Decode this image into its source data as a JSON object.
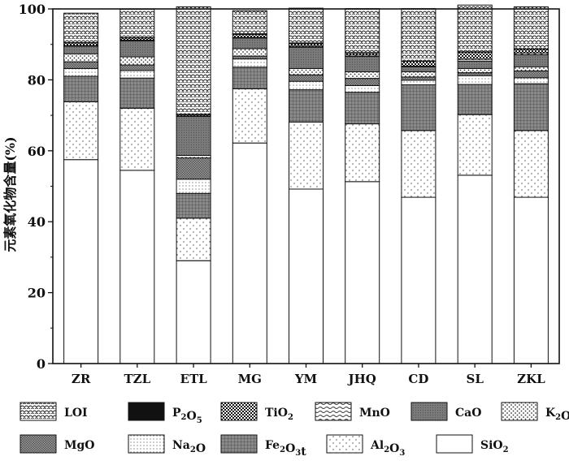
{
  "chart_data": {
    "type": "bar",
    "stacked": true,
    "title": "",
    "xlabel": "",
    "ylabel": "元素氧化物含量(%)",
    "ylim": [
      0,
      100
    ],
    "yticks": [
      0,
      20,
      40,
      60,
      80,
      100
    ],
    "categories": [
      "ZR",
      "TZL",
      "ETL",
      "MG",
      "YM",
      "JHQ",
      "CD",
      "SL",
      "ZKL"
    ],
    "series": [
      {
        "name": "SiO2",
        "pattern": "blank",
        "values": [
          57.5,
          54.5,
          29,
          62.2,
          49.2,
          51.3,
          46.9,
          53.1,
          46.9
        ]
      },
      {
        "name": "Al2O3",
        "pattern": "sparse-dots",
        "values": [
          16.3,
          17.5,
          12,
          15.3,
          18.9,
          16.3,
          18.8,
          17.1,
          18.8
        ]
      },
      {
        "name": "Fe2O3t",
        "pattern": "grid",
        "values": [
          7.2,
          8.5,
          7,
          6.1,
          9.1,
          8.9,
          12.9,
          8.5,
          13.2
        ]
      },
      {
        "name": "Na2O",
        "pattern": "fine-dots",
        "values": [
          2.2,
          2.1,
          4,
          2.3,
          2.4,
          1.9,
          1.3,
          2.5,
          1.7
        ]
      },
      {
        "name": "MgO",
        "pattern": "dense-grid",
        "values": [
          1.9,
          1.6,
          6,
          0.8,
          1.8,
          2.0,
          0.9,
          0.8,
          1.9
        ]
      },
      {
        "name": "K2O",
        "pattern": "dots",
        "values": [
          2.2,
          2.3,
          0.7,
          2.1,
          1.8,
          1.9,
          1.5,
          1.2,
          1.2
        ]
      },
      {
        "name": "CaO",
        "pattern": "gray",
        "values": [
          2.2,
          4.5,
          11,
          3.0,
          6.0,
          4.3,
          1.4,
          2.1,
          3.4
        ]
      },
      {
        "name": "MnO",
        "pattern": "waves",
        "values": [
          0.2,
          0.2,
          0.1,
          0.2,
          0.3,
          0.4,
          0.2,
          0.5,
          0.5
        ]
      },
      {
        "name": "TiO2",
        "pattern": "checker",
        "values": [
          0.7,
          0.6,
          0.4,
          0.8,
          0.7,
          0.6,
          1.3,
          2.0,
          1.0
        ]
      },
      {
        "name": "P2O5",
        "pattern": "black",
        "values": [
          0.1,
          0.1,
          0.1,
          0.2,
          0.2,
          0.1,
          0.1,
          0.1,
          0.1
        ]
      },
      {
        "name": "LOI",
        "pattern": "scales",
        "values": [
          8.3,
          8.0,
          30.3,
          6.5,
          9.8,
          12.4,
          14.8,
          13.2,
          11.9
        ]
      }
    ],
    "legend": {
      "placement": "bottom",
      "rows": [
        [
          {
            "label": "LOI",
            "sub": "",
            "tail": "",
            "pattern": "scales"
          },
          {
            "label": "P",
            "sub": "2",
            "label2": "O",
            "sub2": "5",
            "pattern": "black"
          },
          {
            "label": "TiO",
            "sub": "2",
            "pattern": "checker"
          },
          {
            "label": "MnO",
            "sub": "",
            "pattern": "waves"
          },
          {
            "label": "CaO",
            "sub": "",
            "pattern": "gray"
          },
          {
            "label": "K",
            "sub": "2",
            "label2": "O",
            "pattern": "dots"
          }
        ],
        [
          {
            "label": "MgO",
            "sub": "",
            "pattern": "dense-grid"
          },
          {
            "label": "Na",
            "sub": "2",
            "label2": "O",
            "pattern": "fine-dots"
          },
          {
            "label": "Fe",
            "sub": "2",
            "label2": "O",
            "sub2": "3",
            "label3": "t",
            "pattern": "grid"
          },
          {
            "label": "Al",
            "sub": "2",
            "label2": "O",
            "sub2": "3",
            "pattern": "sparse-dots"
          },
          {
            "label": "SiO",
            "sub": "2",
            "pattern": "blank"
          }
        ]
      ]
    }
  }
}
